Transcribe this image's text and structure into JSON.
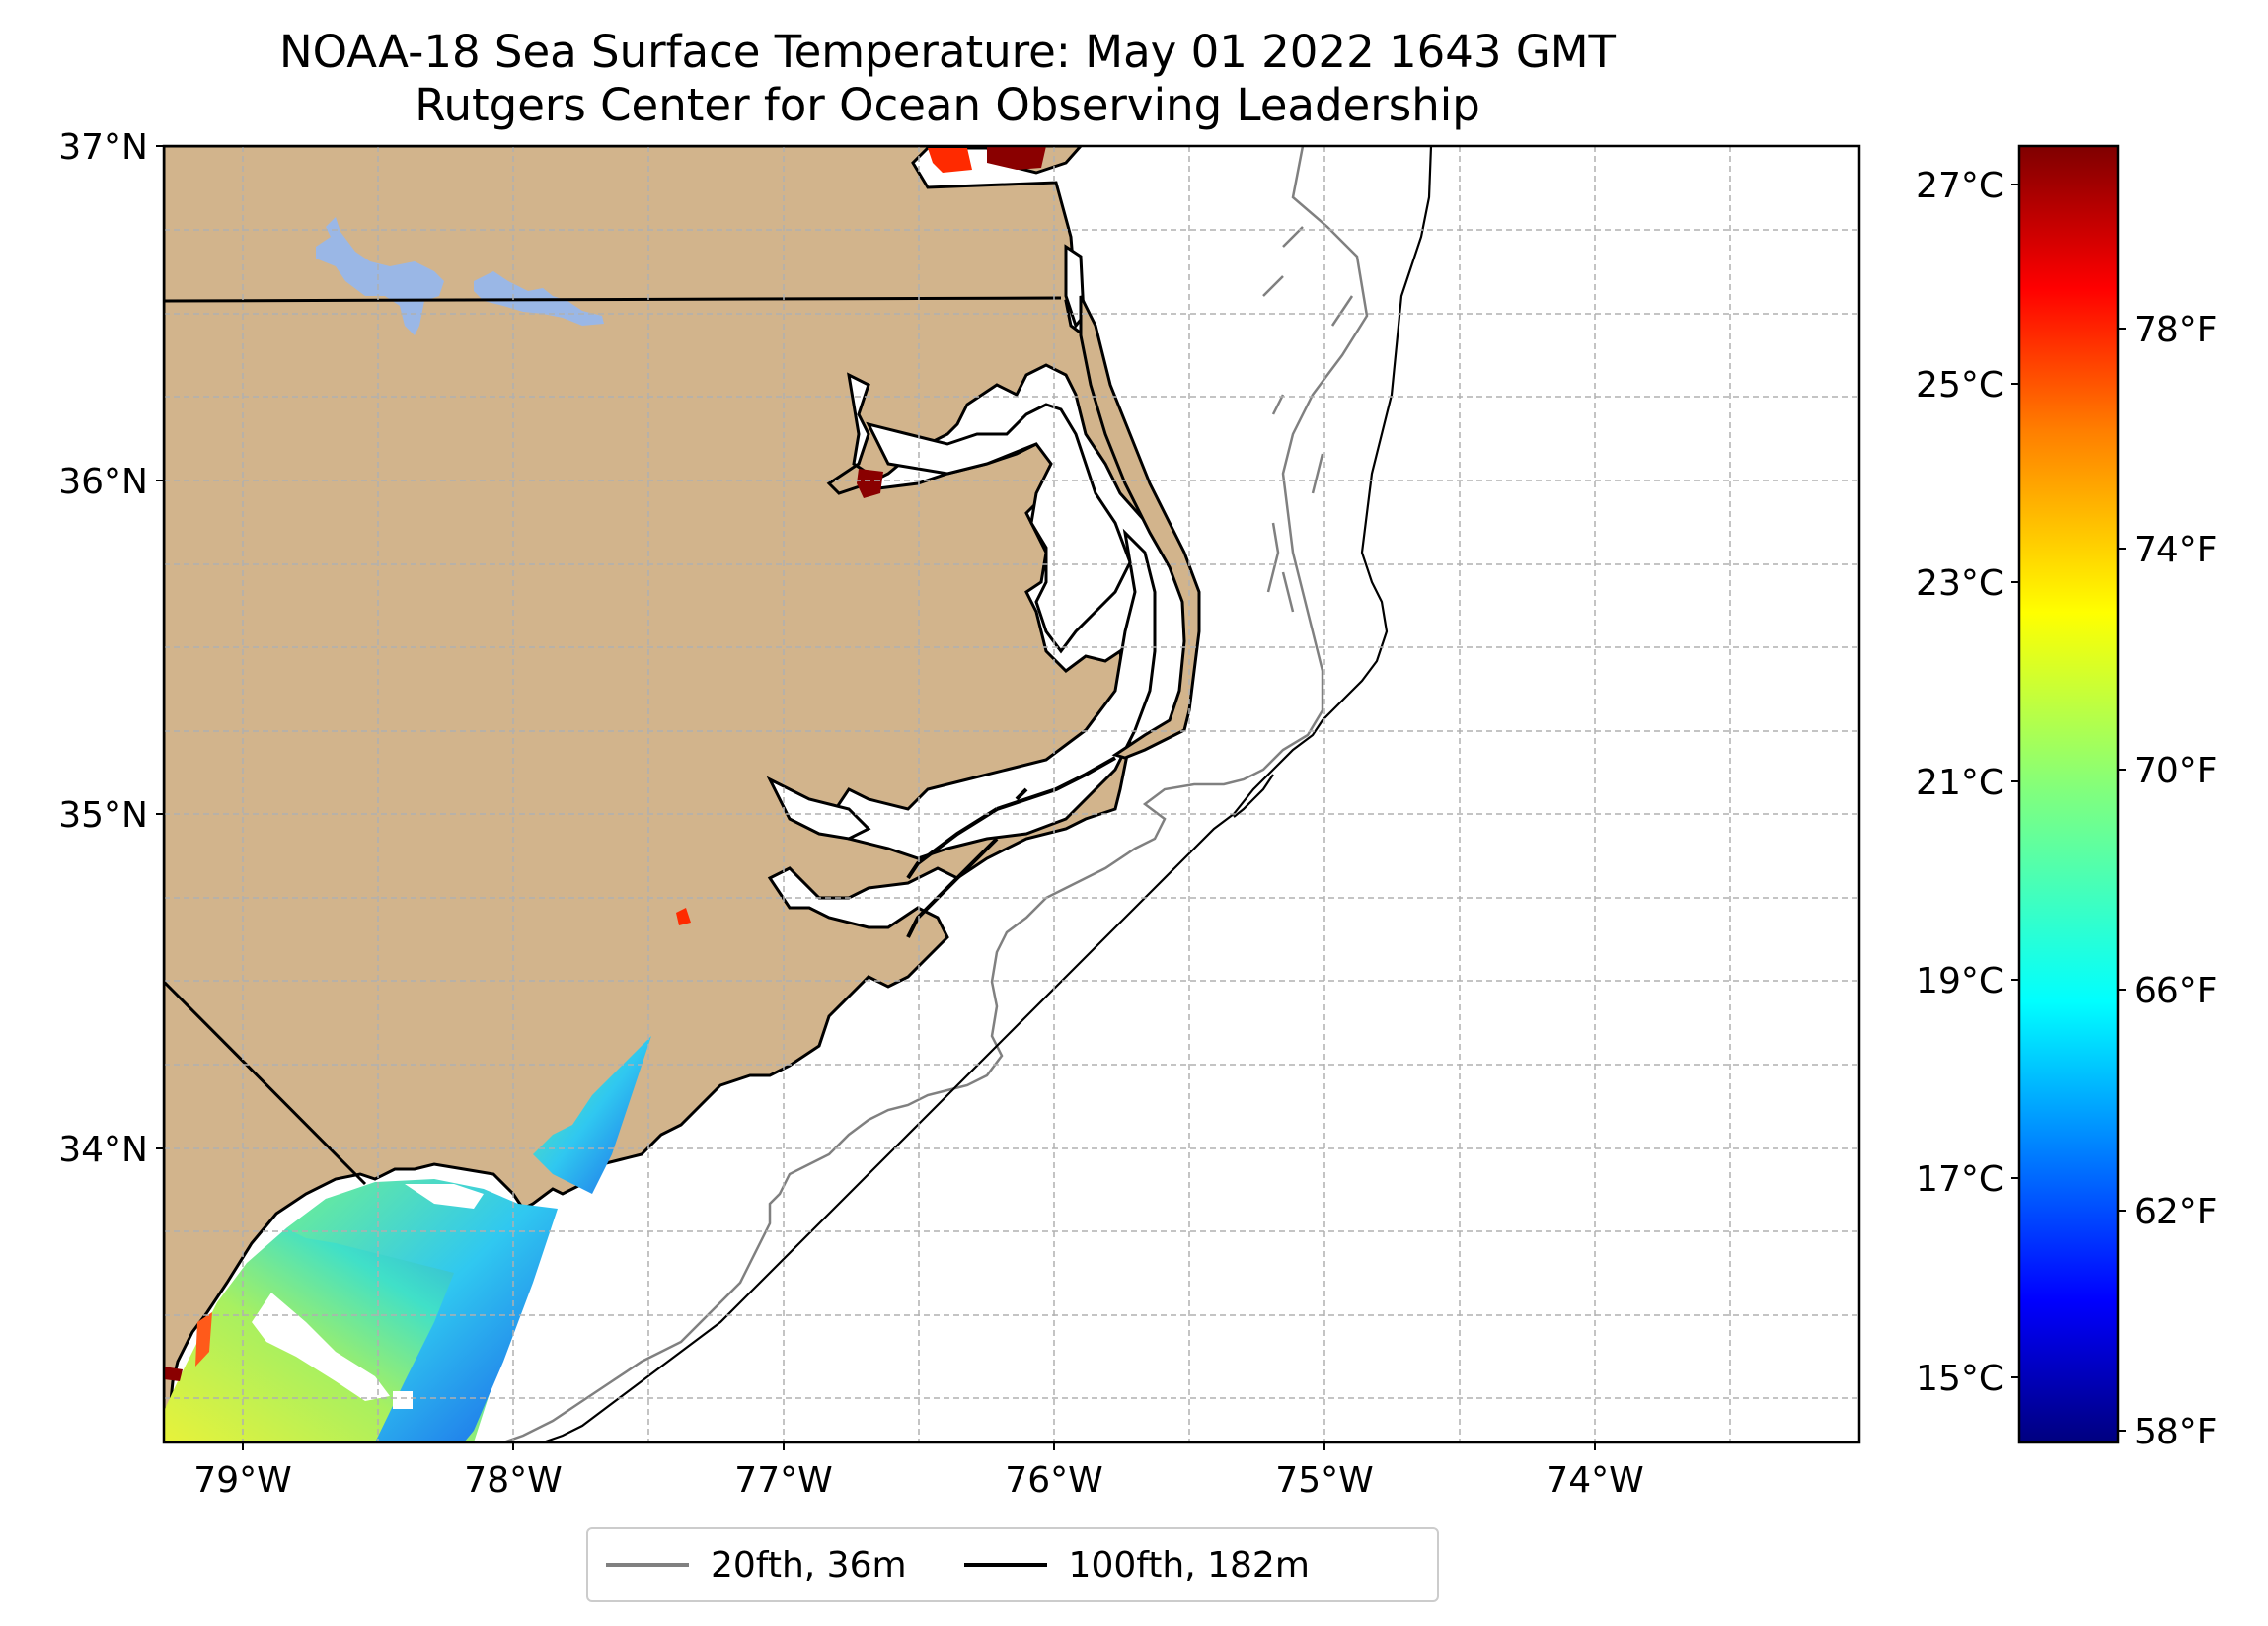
{
  "title": {
    "line1": "NOAA-18 Sea Surface Temperature: May 01 2022 1643 GMT",
    "line2": "Rutgers Center for Ocean Observing Leadership"
  },
  "axes": {
    "lat_ticks": [
      "37°N",
      "36°N",
      "35°N",
      "34°N"
    ],
    "lon_ticks": [
      "79°W",
      "78°W",
      "77°W",
      "76°W",
      "75°W",
      "74°W"
    ],
    "extent": {
      "lon_min": -79.3,
      "lon_max": -73.2,
      "lat_min": 33.1,
      "lat_max": 37.0
    },
    "grid": true
  },
  "colorbar": {
    "celsius_ticks": [
      "27°C",
      "25°C",
      "23°C",
      "21°C",
      "19°C",
      "17°C",
      "15°C"
    ],
    "fahrenheit_ticks": [
      "78°F",
      "74°F",
      "70°F",
      "66°F",
      "62°F",
      "58°F"
    ],
    "colormap": "jet",
    "colors": [
      "#00007f",
      "#0000ff",
      "#007fff",
      "#00ffff",
      "#7fff7f",
      "#ffff00",
      "#ff7f00",
      "#ff0000",
      "#7f0000"
    ]
  },
  "legend": {
    "items": [
      {
        "label": "20fth, 36m",
        "color": "#808080"
      },
      {
        "label": "100fth, 182m",
        "color": "#000000"
      }
    ]
  },
  "colors": {
    "land": "#d2b48c",
    "lakes": "#9ab7e6",
    "coastline": "#000000"
  }
}
